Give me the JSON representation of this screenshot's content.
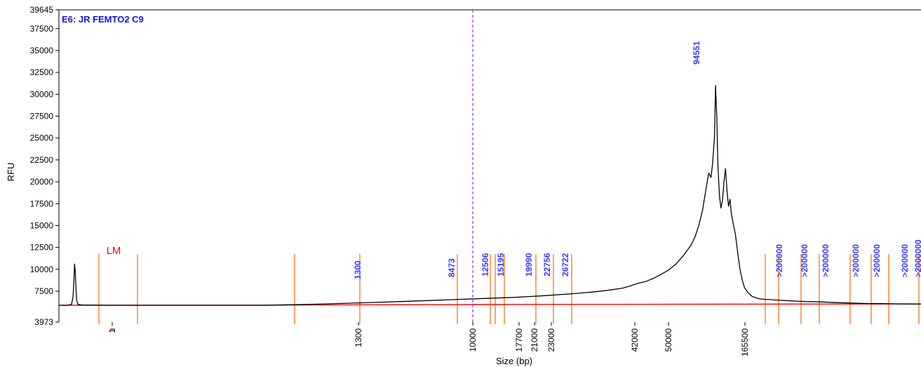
{
  "chart_data": {
    "type": "line",
    "title": "E6: JR FEMTO2 C9",
    "xlabel": "Size (bp)",
    "ylabel": "RFU",
    "ylim": [
      3973,
      39645
    ],
    "y_ticks": [
      3973,
      7500,
      10000,
      12500,
      15000,
      17500,
      20000,
      22500,
      25000,
      27500,
      30000,
      32500,
      35000,
      37500,
      39645
    ],
    "x_ticks": [
      {
        "label": "1",
        "red_mark": true
      },
      {
        "label": "1300"
      },
      {
        "label": "10000"
      },
      {
        "label": "17700"
      },
      {
        "label": "21000"
      },
      {
        "label": "23000"
      },
      {
        "label": "42000"
      },
      {
        "label": "50000"
      },
      {
        "label": "165500"
      }
    ],
    "grid": false,
    "lower_marker": {
      "label": "LM",
      "size": 1,
      "height": 10600
    },
    "peak_labels": [
      "1300",
      "8473",
      "12506",
      "15195",
      "19990",
      "22756",
      "26722",
      "94551",
      ">200000",
      ">200000",
      ">200000",
      ">200000",
      ">200000",
      ">200000",
      ">2000000"
    ],
    "series": [
      {
        "role": "trace",
        "points": [
          [
            0.0,
            5900
          ],
          [
            0.011,
            5900
          ],
          [
            0.0165,
            6000
          ],
          [
            0.0185,
            6800
          ],
          [
            0.0195,
            8500
          ],
          [
            0.0205,
            10600
          ],
          [
            0.0215,
            9800
          ],
          [
            0.0225,
            7600
          ],
          [
            0.0235,
            6400
          ],
          [
            0.025,
            6000
          ],
          [
            0.03,
            5920
          ],
          [
            0.07,
            5900
          ],
          [
            0.21,
            5900
          ],
          [
            0.27,
            5900
          ],
          [
            0.31,
            5960
          ],
          [
            0.35,
            6050
          ],
          [
            0.4,
            6180
          ],
          [
            0.45,
            6320
          ],
          [
            0.5,
            6480
          ],
          [
            0.55,
            6640
          ],
          [
            0.6,
            6800
          ],
          [
            0.64,
            7000
          ],
          [
            0.68,
            7250
          ],
          [
            0.7,
            7400
          ],
          [
            0.72,
            7600
          ],
          [
            0.74,
            7850
          ],
          [
            0.75,
            8100
          ],
          [
            0.76,
            8400
          ],
          [
            0.77,
            8600
          ],
          [
            0.78,
            8950
          ],
          [
            0.79,
            9400
          ],
          [
            0.8,
            9900
          ],
          [
            0.81,
            10600
          ],
          [
            0.82,
            11600
          ],
          [
            0.83,
            12800
          ],
          [
            0.835,
            13700
          ],
          [
            0.84,
            15000
          ],
          [
            0.845,
            16800
          ],
          [
            0.85,
            19500
          ],
          [
            0.853,
            21000
          ],
          [
            0.856,
            20500
          ],
          [
            0.858,
            22000
          ],
          [
            0.8605,
            25000
          ],
          [
            0.862,
            31000
          ],
          [
            0.8635,
            27500
          ],
          [
            0.865,
            22000
          ],
          [
            0.867,
            18500
          ],
          [
            0.869,
            17000
          ],
          [
            0.871,
            17800
          ],
          [
            0.873,
            20000
          ],
          [
            0.875,
            21500
          ],
          [
            0.877,
            19000
          ],
          [
            0.879,
            17200
          ],
          [
            0.881,
            18000
          ],
          [
            0.8825,
            16500
          ],
          [
            0.885,
            15300
          ],
          [
            0.888,
            14000
          ],
          [
            0.891,
            12000
          ],
          [
            0.894,
            10000
          ],
          [
            0.897,
            8800
          ],
          [
            0.9,
            7900
          ],
          [
            0.905,
            7300
          ],
          [
            0.91,
            6900
          ],
          [
            0.92,
            6620
          ],
          [
            0.94,
            6500
          ],
          [
            0.96,
            6400
          ],
          [
            0.98,
            6320
          ],
          [
            1.0,
            6280
          ],
          [
            1.02,
            6200
          ],
          [
            1.04,
            6150
          ],
          [
            1.06,
            6100
          ],
          [
            1.08,
            6080
          ],
          [
            1.1,
            6060
          ],
          [
            1.12,
            6040
          ],
          [
            1.14,
            6030
          ]
        ]
      },
      {
        "role": "baseline",
        "points": [
          [
            0.0,
            5900
          ],
          [
            0.27,
            5900
          ],
          [
            0.3,
            5920
          ],
          [
            0.45,
            5950
          ],
          [
            0.5,
            5960
          ],
          [
            0.55,
            5980
          ],
          [
            0.6,
            5990
          ],
          [
            0.7,
            6000
          ],
          [
            0.8,
            6010
          ],
          [
            0.85,
            6020
          ],
          [
            1.0,
            6030
          ],
          [
            1.14,
            6040
          ]
        ]
      }
    ],
    "colors": {
      "trace": "#000000",
      "baseline": "#ff0000",
      "size_marker": "#ff6600",
      "peak_label": "#3a3aff",
      "title": "#1515e6",
      "lower_marker": "#ff0000",
      "divider": "#9933cc"
    }
  }
}
